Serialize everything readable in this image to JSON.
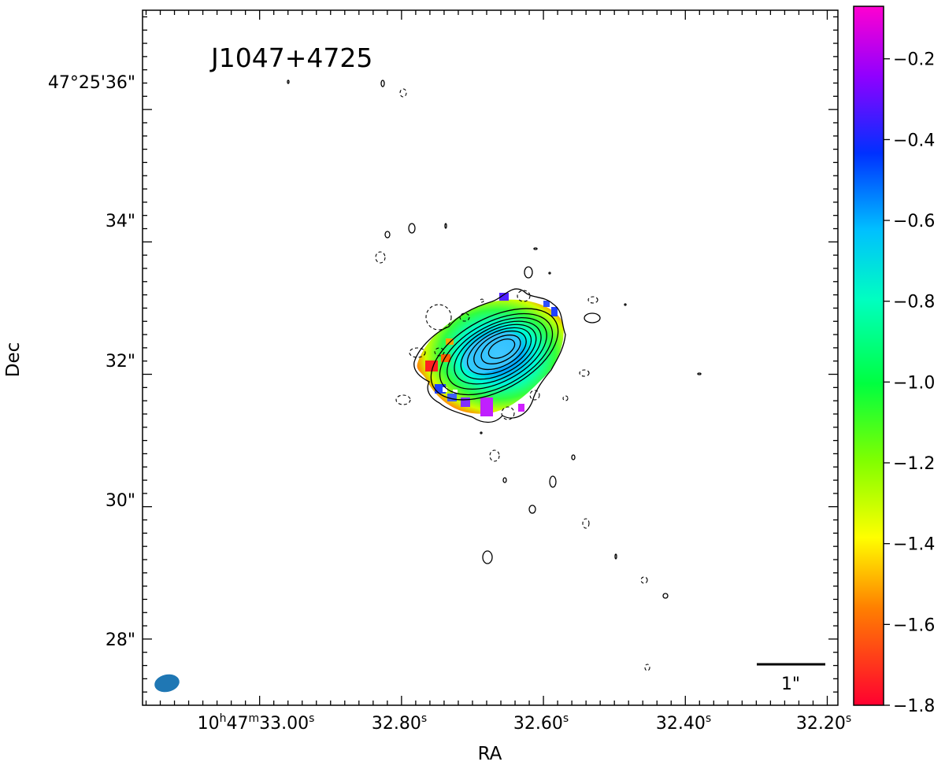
{
  "chart_data": {
    "type": "heatmap",
    "title": "J1047+4725",
    "xlabel": "RA",
    "ylabel": "Dec",
    "x_ticks": [
      {
        "ra_s": 33.0,
        "label_parts": [
          "10",
          "h",
          "47",
          "m",
          "33.00",
          "s"
        ]
      },
      {
        "ra_s": 32.8,
        "label_parts": [
          "",
          "",
          "",
          "",
          "32.80",
          "s"
        ]
      },
      {
        "ra_s": 32.6,
        "label_parts": [
          "",
          "",
          "",
          "",
          "32.60",
          "s"
        ]
      },
      {
        "ra_s": 32.4,
        "label_parts": [
          "",
          "",
          "",
          "",
          "32.40",
          "s"
        ]
      },
      {
        "ra_s": 32.2,
        "label_parts": [
          "",
          "",
          "",
          "",
          "32.20",
          "s"
        ]
      }
    ],
    "y_ticks": [
      {
        "dec_arcsec": 36,
        "label": "47°25'36\""
      },
      {
        "dec_arcsec": 34,
        "label": "34\""
      },
      {
        "dec_arcsec": 32,
        "label": "32\""
      },
      {
        "dec_arcsec": 30,
        "label": "30\""
      },
      {
        "dec_arcsec": 28,
        "label": "28\""
      }
    ],
    "xlim_ra_s": [
      33.165,
      32.185
    ],
    "ylim_dec_arcsec": [
      27.0,
      37.5
    ],
    "colorbar": {
      "colormap": "gist_rainbow",
      "range": [
        -1.8,
        -0.07
      ],
      "tick_values": [
        -0.2,
        -0.4,
        -0.6,
        -0.8,
        -1.0,
        -1.2,
        -1.4,
        -1.6,
        -1.8
      ],
      "tick_labels": [
        "−0.2",
        "−0.4",
        "−0.6",
        "−0.8",
        "−1.0",
        "−1.2",
        "−1.4",
        "−1.6",
        "−1.8"
      ]
    },
    "source": {
      "center_ra_s": 32.655,
      "center_dec_arcsec": 32.2,
      "core_spectral_index": -0.55,
      "edge_spectral_index": [
        -1.7,
        -0.2
      ]
    },
    "scale_bar": {
      "length_arcsec": 1,
      "label": "1\""
    },
    "beam": {
      "shape": "ellipse",
      "color": "#1f77b4"
    },
    "grid": false
  }
}
